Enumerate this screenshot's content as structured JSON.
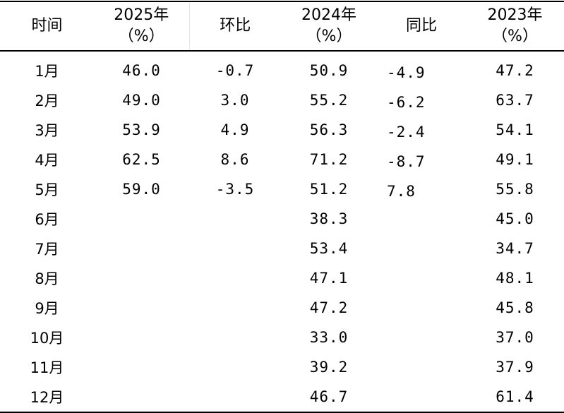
{
  "headers": {
    "time": "时间",
    "y2025_line1": "2025年",
    "y2025_line2": "（%）",
    "mom": "环比",
    "y2024_line1": "2024年",
    "y2024_line2": "（%）",
    "yoy": "同比",
    "y2023_line1": "2023年",
    "y2023_line2": "（%）"
  },
  "rows": [
    {
      "month": "1月",
      "y2025": "46.0",
      "mom": "-0.7",
      "y2024": "50.9",
      "yoy": "-4.9",
      "y2023": "47.2"
    },
    {
      "month": "2月",
      "y2025": "49.0",
      "mom": "3.0",
      "y2024": "55.2",
      "yoy": "-6.2",
      "y2023": "63.7"
    },
    {
      "month": "3月",
      "y2025": "53.9",
      "mom": "4.9",
      "y2024": "56.3",
      "yoy": "-2.4",
      "y2023": "54.1"
    },
    {
      "month": "4月",
      "y2025": "62.5",
      "mom": "8.6",
      "y2024": "71.2",
      "yoy": "-8.7",
      "y2023": "49.1"
    },
    {
      "month": "5月",
      "y2025": "59.0",
      "mom": "-3.5",
      "y2024": "51.2",
      "yoy": "7.8",
      "y2023": "55.8"
    },
    {
      "month": "6月",
      "y2025": "",
      "mom": "",
      "y2024": "38.3",
      "yoy": "",
      "y2023": "45.0"
    },
    {
      "month": "7月",
      "y2025": "",
      "mom": "",
      "y2024": "53.4",
      "yoy": "",
      "y2023": "34.7"
    },
    {
      "month": "8月",
      "y2025": "",
      "mom": "",
      "y2024": "47.1",
      "yoy": "",
      "y2023": "48.1"
    },
    {
      "month": "9月",
      "y2025": "",
      "mom": "",
      "y2024": "47.2",
      "yoy": "",
      "y2023": "45.8"
    },
    {
      "month": "10月",
      "y2025": "",
      "mom": "",
      "y2024": "33.0",
      "yoy": "",
      "y2023": "37.0"
    },
    {
      "month": "11月",
      "y2025": "",
      "mom": "",
      "y2024": "39.2",
      "yoy": "",
      "y2023": "37.9"
    },
    {
      "month": "12月",
      "y2025": "",
      "mom": "",
      "y2024": "46.7",
      "yoy": "",
      "y2023": "61.4"
    }
  ]
}
